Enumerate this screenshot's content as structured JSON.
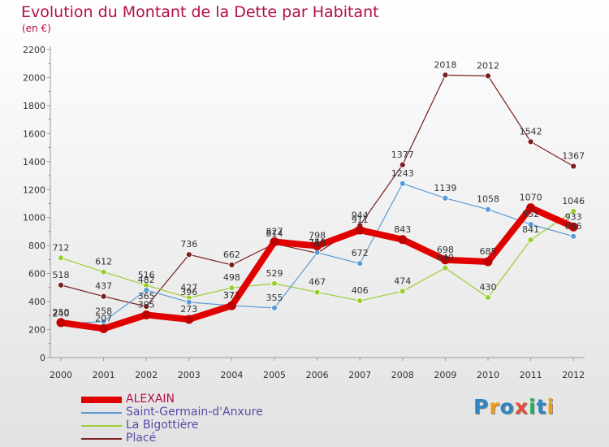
{
  "header": {
    "title": "Evolution du Montant de la Dette par Habitant",
    "subtitle": "(en €)"
  },
  "logo_text": "Proxiti",
  "logo_colors": [
    "#2e86c1",
    "#f39c12",
    "#2e86c1",
    "#e74c3c",
    "#27ae60",
    "#2e86c1",
    "#f39c12"
  ],
  "chart_data": {
    "type": "line",
    "title": "Evolution du Montant de la Dette par Habitant",
    "subtitle": "(en €)",
    "xlabel": "",
    "ylabel": "",
    "ylim": [
      0,
      2200
    ],
    "yticks": [
      0,
      200,
      400,
      600,
      800,
      1000,
      1200,
      1400,
      1600,
      1800,
      2000,
      2200
    ],
    "grid": false,
    "legend_position": "bottom-left",
    "x": [
      "2000",
      "2001",
      "2002",
      "2003",
      "2004",
      "2005",
      "2006",
      "2007",
      "2008",
      "2009",
      "2010",
      "2011",
      "2012"
    ],
    "series": [
      {
        "name": "ALEXAIN",
        "color": "#e00000",
        "values": [
          250,
          207,
          305,
          273,
          371,
          827,
          798,
          911,
          843,
          698,
          685,
          1070,
          933
        ]
      },
      {
        "name": "Saint-Germain-d'Anxure",
        "color": "#5b9bd5",
        "values": [
          240,
          258,
          482,
          396,
          371,
          355,
          750,
          672,
          1243,
          1139,
          1058,
          952,
          866
        ]
      },
      {
        "name": "La Bigottière",
        "color": "#9acd32",
        "values": [
          712,
          612,
          516,
          427,
          498,
          529,
          467,
          406,
          474,
          640,
          430,
          841,
          1046
        ]
      },
      {
        "name": "Placé",
        "color": "#7a1f1f",
        "values": [
          518,
          437,
          365,
          736,
          662,
          814,
          746,
          944,
          1377,
          2018,
          2012,
          1542,
          1367
        ]
      }
    ]
  }
}
